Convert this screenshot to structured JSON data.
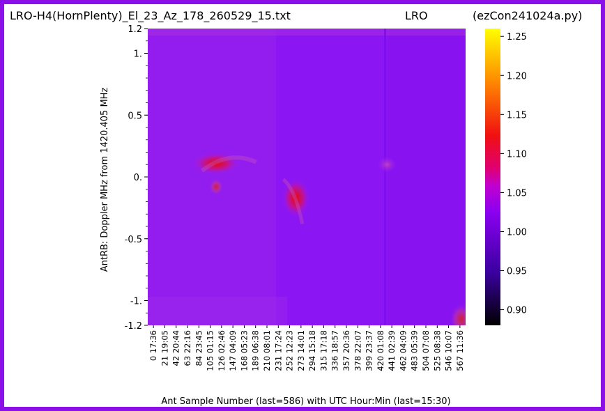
{
  "chart_data": {
    "type": "heatmap",
    "title_left": "LRO-H4(HornPlenty)_El_23_Az_178_260529_15.txt",
    "title_center": "LRO",
    "title_right": "(ezCon241024a.py)",
    "xlabel": "Ant Sample Number (last=586) with UTC Hour:Min (last=15:30)",
    "ylabel": "AntRB:  Doppler MHz from 1420.405 MHz",
    "x_ticks": [
      "0 17:36",
      "21 19:05",
      "42 20:44",
      "63 22:16",
      "84 23:45",
      "105 01:15",
      "126 02:46",
      "147 04:09",
      "168 05:23",
      "189 06:38",
      "210 08:01",
      "231 17:24",
      "252 12:23",
      "273 14:01",
      "294 15:18",
      "315 17:18",
      "336 18:57",
      "357 20:36",
      "378 22:07",
      "399 23:37",
      "420 01:08",
      "441 02:39",
      "462 04:09",
      "483 05:39",
      "504 07:08",
      "525 08:38",
      "546 10:07",
      "567 11:36"
    ],
    "y_ticks": [
      "1.2",
      "1.",
      "0.5",
      "0.",
      "-0.5",
      "-1.",
      "-1.2"
    ],
    "y_tick_values": [
      1.2,
      1.0,
      0.5,
      0.0,
      -0.5,
      -1.0,
      -1.2
    ],
    "ylim": [
      -1.2,
      1.2
    ],
    "xlim": [
      0,
      586
    ],
    "colorbar": {
      "colormap": "gnuplot",
      "range": [
        0.88,
        1.26
      ],
      "ticks": [
        "1.25",
        "1.20",
        "1.15",
        "1.10",
        "1.05",
        "1.00",
        "0.95",
        "0.90"
      ],
      "tick_values": [
        1.25,
        1.2,
        1.15,
        1.1,
        1.05,
        1.0,
        0.95,
        0.9
      ]
    },
    "background_value": 0.99,
    "features": [
      {
        "x": 126,
        "y": 0.11,
        "value": 1.11
      },
      {
        "x": 126,
        "y": -0.08,
        "value": 1.04
      },
      {
        "x": 273,
        "y": -0.17,
        "value": 1.09
      },
      {
        "x": 441,
        "y": 0.1,
        "value": 1.02
      },
      {
        "x": 578,
        "y": -1.15,
        "value": 1.04
      }
    ]
  }
}
